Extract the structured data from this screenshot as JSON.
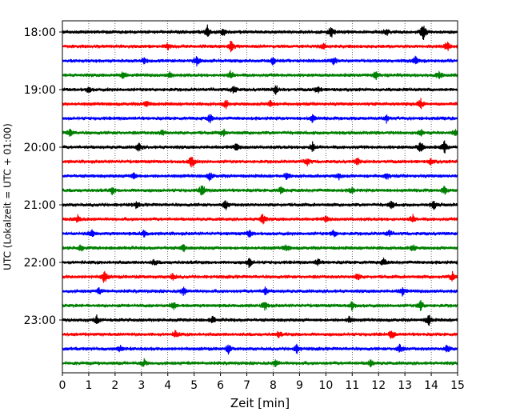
{
  "chart_data": {
    "type": "line",
    "xlabel": "Zeit  [min]",
    "ylabel": "UTC (Lokalzeit = UTC + 01:00)",
    "xlim": [
      0,
      15
    ],
    "x_ticks": [
      "0",
      "1",
      "2",
      "3",
      "4",
      "5",
      "6",
      "7",
      "8",
      "9",
      "10",
      "11",
      "12",
      "13",
      "14",
      "15"
    ],
    "y_ticks": [
      "18:00",
      "19:00",
      "20:00",
      "21:00",
      "22:00",
      "23:00"
    ],
    "trace_interval_min": 15,
    "grid": "vertical dotted",
    "colors": [
      "#000000",
      "#ff0000",
      "#0000ff",
      "#008000"
    ],
    "series": [
      {
        "start": "18:00",
        "color": "#000000",
        "events": [
          [
            5.5,
            0.9
          ],
          [
            6.1,
            0.6
          ],
          [
            10.2,
            1.0
          ],
          [
            13.7,
            1.3
          ],
          [
            12.3,
            0.5
          ]
        ]
      },
      {
        "start": "18:15",
        "color": "#ff0000",
        "events": [
          [
            6.4,
            1.0
          ],
          [
            14.6,
            0.7
          ],
          [
            4.0,
            0.4
          ],
          [
            9.9,
            0.4
          ]
        ]
      },
      {
        "start": "18:30",
        "color": "#0000ff",
        "events": [
          [
            5.1,
            0.7
          ],
          [
            8.0,
            0.6
          ],
          [
            10.3,
            0.6
          ],
          [
            13.4,
            0.6
          ],
          [
            3.1,
            0.4
          ]
        ]
      },
      {
        "start": "18:45",
        "color": "#008000",
        "events": [
          [
            2.3,
            0.5
          ],
          [
            4.1,
            0.6
          ],
          [
            6.4,
            0.6
          ],
          [
            11.9,
            0.5
          ],
          [
            14.3,
            0.5
          ]
        ]
      },
      {
        "start": "19:00",
        "color": "#000000",
        "events": [
          [
            6.5,
            0.6
          ],
          [
            8.1,
            0.6
          ],
          [
            9.7,
            0.5
          ],
          [
            1.0,
            0.4
          ]
        ]
      },
      {
        "start": "19:15",
        "color": "#ff0000",
        "events": [
          [
            3.2,
            0.5
          ],
          [
            6.2,
            0.6
          ],
          [
            7.9,
            0.5
          ],
          [
            13.6,
            0.7
          ]
        ]
      },
      {
        "start": "19:30",
        "color": "#0000ff",
        "events": [
          [
            5.6,
            0.6
          ],
          [
            9.5,
            0.5
          ],
          [
            12.3,
            0.5
          ]
        ]
      },
      {
        "start": "19:45",
        "color": "#008000",
        "events": [
          [
            0.3,
            0.6
          ],
          [
            3.8,
            0.4
          ],
          [
            6.1,
            0.5
          ],
          [
            13.6,
            0.5
          ],
          [
            14.9,
            0.5
          ]
        ]
      },
      {
        "start": "20:00",
        "color": "#000000",
        "events": [
          [
            2.9,
            0.6
          ],
          [
            9.5,
            0.7
          ],
          [
            13.6,
            0.9
          ],
          [
            14.5,
            0.9
          ],
          [
            6.6,
            0.5
          ]
        ]
      },
      {
        "start": "20:15",
        "color": "#ff0000",
        "events": [
          [
            4.9,
            1.0
          ],
          [
            9.3,
            0.5
          ],
          [
            11.2,
            0.5
          ],
          [
            14.0,
            0.5
          ]
        ]
      },
      {
        "start": "20:30",
        "color": "#0000ff",
        "events": [
          [
            2.7,
            0.5
          ],
          [
            5.6,
            0.6
          ],
          [
            8.5,
            0.5
          ],
          [
            12.3,
            0.5
          ],
          [
            10.5,
            0.4
          ]
        ]
      },
      {
        "start": "20:45",
        "color": "#008000",
        "events": [
          [
            1.9,
            0.5
          ],
          [
            5.3,
            0.9
          ],
          [
            8.3,
            0.5
          ],
          [
            11.0,
            0.5
          ],
          [
            14.5,
            0.5
          ]
        ]
      },
      {
        "start": "21:00",
        "color": "#000000",
        "events": [
          [
            6.2,
            0.6
          ],
          [
            12.5,
            0.6
          ],
          [
            14.1,
            0.6
          ],
          [
            2.8,
            0.4
          ]
        ]
      },
      {
        "start": "21:15",
        "color": "#ff0000",
        "events": [
          [
            0.6,
            0.6
          ],
          [
            7.6,
            0.8
          ],
          [
            13.3,
            0.6
          ],
          [
            10.0,
            0.4
          ]
        ]
      },
      {
        "start": "21:30",
        "color": "#0000ff",
        "events": [
          [
            1.1,
            0.6
          ],
          [
            3.1,
            0.5
          ],
          [
            7.1,
            0.5
          ],
          [
            10.3,
            0.5
          ],
          [
            12.4,
            0.4
          ]
        ]
      },
      {
        "start": "21:45",
        "color": "#008000",
        "events": [
          [
            0.7,
            0.5
          ],
          [
            4.6,
            0.5
          ],
          [
            8.5,
            0.5
          ],
          [
            13.3,
            0.5
          ]
        ]
      },
      {
        "start": "22:00",
        "color": "#000000",
        "events": [
          [
            7.1,
            0.7
          ],
          [
            9.7,
            0.5
          ],
          [
            12.2,
            0.5
          ],
          [
            3.5,
            0.4
          ]
        ]
      },
      {
        "start": "22:15",
        "color": "#ff0000",
        "events": [
          [
            1.6,
            1.0
          ],
          [
            4.2,
            0.5
          ],
          [
            11.2,
            0.5
          ],
          [
            14.8,
            0.6
          ]
        ]
      },
      {
        "start": "22:30",
        "color": "#0000ff",
        "events": [
          [
            4.6,
            0.6
          ],
          [
            7.7,
            0.5
          ],
          [
            12.9,
            0.6
          ],
          [
            1.4,
            0.4
          ]
        ]
      },
      {
        "start": "22:45",
        "color": "#008000",
        "events": [
          [
            4.2,
            0.6
          ],
          [
            7.7,
            0.6
          ],
          [
            11.0,
            0.6
          ],
          [
            13.6,
            0.7
          ]
        ]
      },
      {
        "start": "23:00",
        "color": "#000000",
        "events": [
          [
            1.3,
            0.6
          ],
          [
            5.7,
            0.5
          ],
          [
            10.9,
            0.5
          ],
          [
            13.9,
            0.8
          ]
        ]
      },
      {
        "start": "23:15",
        "color": "#ff0000",
        "events": [
          [
            4.3,
            0.5
          ],
          [
            8.2,
            0.4
          ],
          [
            12.5,
            0.7
          ]
        ]
      },
      {
        "start": "23:30",
        "color": "#0000ff",
        "events": [
          [
            2.2,
            0.5
          ],
          [
            6.3,
            0.6
          ],
          [
            8.9,
            0.6
          ],
          [
            12.8,
            0.7
          ],
          [
            14.6,
            0.6
          ]
        ]
      },
      {
        "start": "23:45",
        "color": "#008000",
        "events": [
          [
            3.1,
            0.5
          ],
          [
            8.1,
            0.5
          ],
          [
            11.7,
            0.5
          ]
        ]
      }
    ]
  }
}
